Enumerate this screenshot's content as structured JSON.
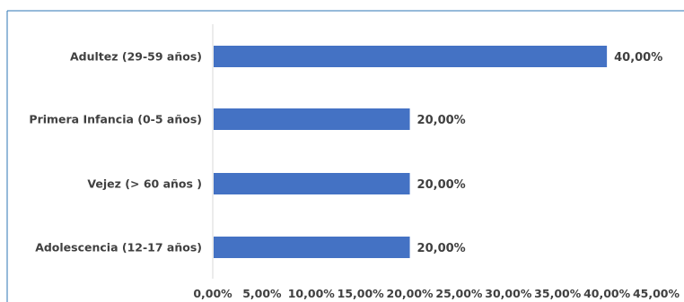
{
  "chart_data": {
    "type": "bar",
    "orientation": "horizontal",
    "categories": [
      "Adultez (29-59 años)",
      "Primera Infancia (0-5 años)",
      "Vejez (> 60 años )",
      "Adolescencia (12-17 años)"
    ],
    "values": [
      40,
      20,
      20,
      20
    ],
    "data_labels": [
      "40,00%",
      "20,00%",
      "20,00%",
      "20,00%"
    ],
    "xlim": [
      0,
      45
    ],
    "xticks": [
      0,
      5,
      10,
      15,
      20,
      25,
      30,
      35,
      40,
      45
    ],
    "xtick_labels": [
      "0,00%",
      "5,00%",
      "10,00%",
      "15,00%",
      "20,00%",
      "25,00%",
      "30,00%",
      "35,00%",
      "40,00%",
      "45,00%"
    ],
    "title": "",
    "xlabel": "",
    "ylabel": "",
    "grid": false,
    "legend": "none",
    "colors": {
      "bar": "#4472C4",
      "text": "#404040",
      "axis": "#d9d9d9",
      "frame": "#2e75b6"
    }
  }
}
